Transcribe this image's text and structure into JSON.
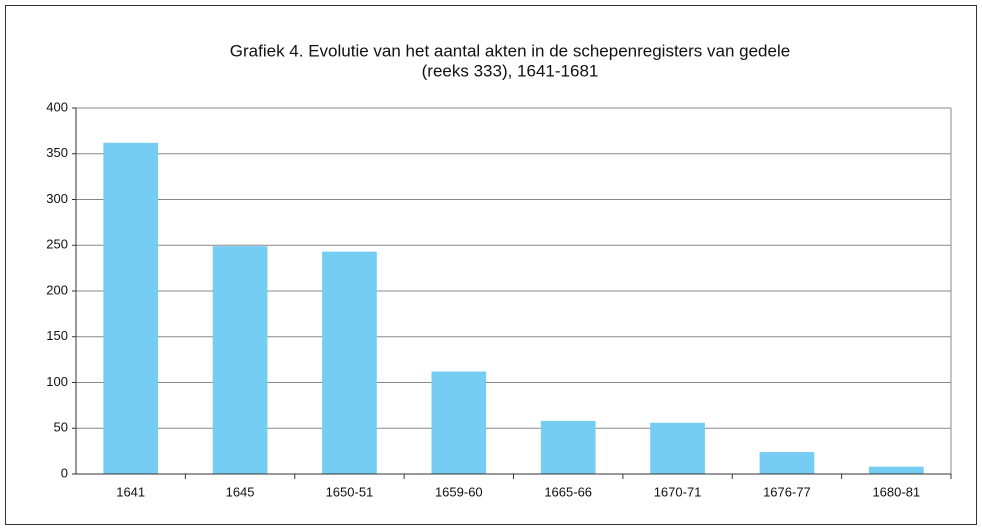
{
  "chart_data": {
    "type": "bar",
    "title": [
      "Grafiek 4.  Evolutie van het aantal akten in de schepenregisters van gedele",
      "(reeks 333), 1641-1681"
    ],
    "categories": [
      "1641",
      "1645",
      "1650-51",
      "1659-60",
      "1665-66",
      "1670-71",
      "1676-77",
      "1680-81"
    ],
    "values": [
      362,
      249,
      243,
      112,
      58,
      56,
      24,
      8
    ],
    "color": "#75cdf4",
    "ylim": [
      0,
      400
    ],
    "yticks": [
      0,
      50,
      100,
      150,
      200,
      250,
      300,
      350,
      400
    ],
    "grid": true
  }
}
